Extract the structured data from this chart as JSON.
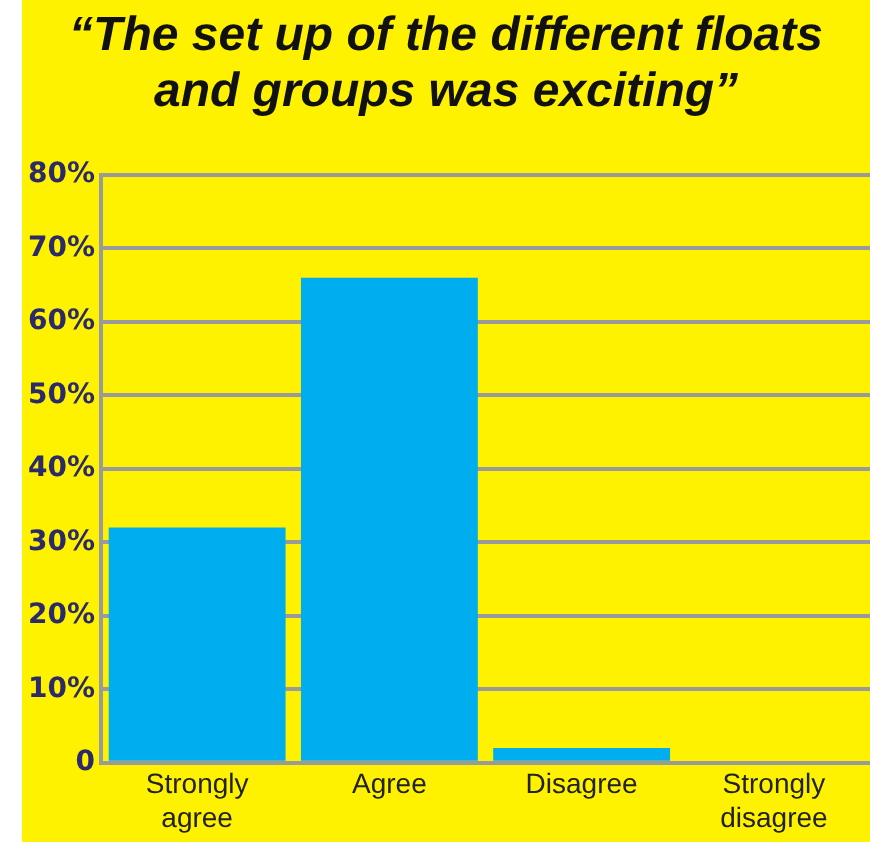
{
  "chart_data": {
    "type": "bar",
    "title": "“The set up of the different floats and groups was exciting”",
    "categories": [
      "Strongly\nagree",
      "Agree",
      "Disagree",
      "Strongly\ndisagree"
    ],
    "values": [
      32,
      66,
      2,
      0
    ],
    "color": "#00adee",
    "ylim": [
      0,
      80
    ],
    "yticks": [
      {
        "value": 0,
        "label": "0"
      },
      {
        "value": 10,
        "label": "10%"
      },
      {
        "value": 20,
        "label": "20%"
      },
      {
        "value": 30,
        "label": "30%"
      },
      {
        "value": 40,
        "label": "40%"
      },
      {
        "value": 50,
        "label": "50%"
      },
      {
        "value": 60,
        "label": "60%"
      },
      {
        "value": 70,
        "label": "70%"
      },
      {
        "value": 80,
        "label": "80%"
      }
    ],
    "grid": "y",
    "legend": false
  }
}
